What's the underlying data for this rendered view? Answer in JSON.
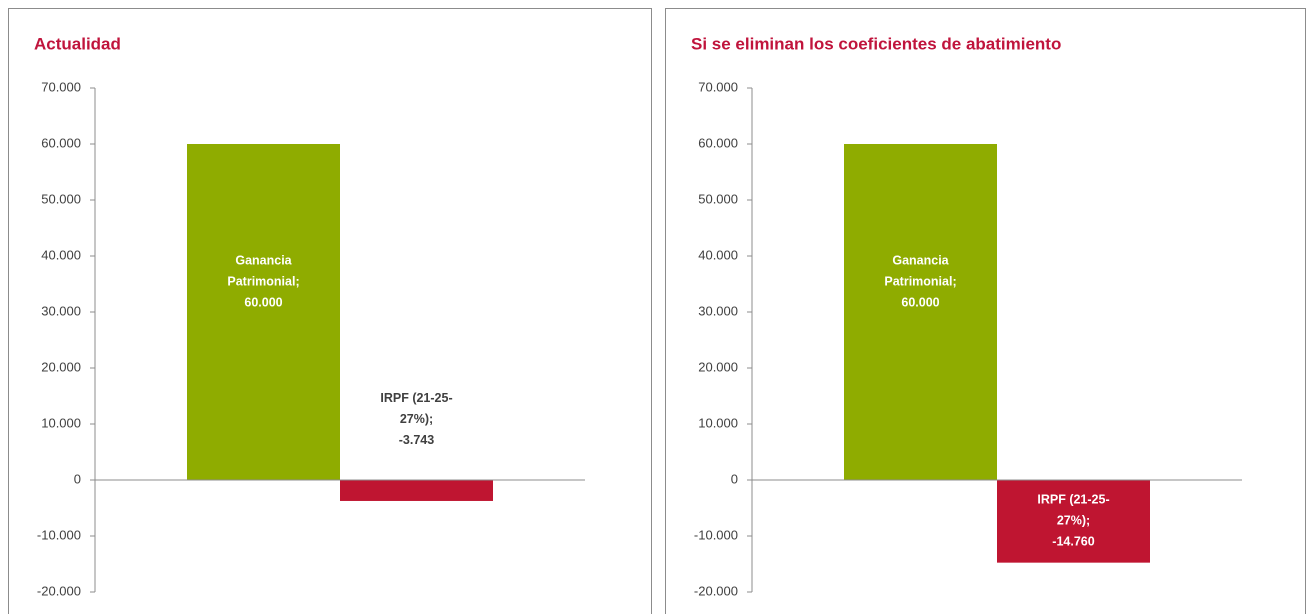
{
  "chart_data": [
    {
      "type": "bar",
      "title": "Actualidad",
      "categories": [
        null
      ],
      "series": [
        {
          "color": "#8fac00",
          "values": [
            60000
          ],
          "value_labels": [
            [
              "Ganancia",
              "Patrimonial;",
              "60.000"
            ]
          ]
        },
        {
          "color": "#bf1531",
          "values": [
            -3743
          ],
          "value_labels": [
            [
              "IRPF (21-25-",
              "27%);",
              "-3.743"
            ]
          ]
        }
      ],
      "ylim": [
        -20000,
        70000
      ],
      "yticks": [
        {
          "value": -20000,
          "label": "-20.000"
        },
        {
          "value": -10000,
          "label": "-10.000"
        },
        0,
        {
          "value": 10000,
          "label": "10.000"
        },
        {
          "value": 20000,
          "label": "20.000"
        },
        {
          "value": 30000,
          "label": "30.000"
        },
        {
          "value": 40000,
          "label": "40.000"
        },
        {
          "value": 50000,
          "label": "50.000"
        },
        {
          "value": 60000,
          "label": "60.000"
        },
        {
          "value": 70000,
          "label": "70.000"
        }
      ],
      "grid": false
    },
    {
      "type": "bar",
      "title": "Si se eliminan los coeficientes de abatimiento",
      "categories": [
        null
      ],
      "series": [
        {
          "color": "#8fac00",
          "values": [
            60000
          ],
          "value_labels": [
            [
              "Ganancia",
              "Patrimonial;",
              "60.000"
            ]
          ]
        },
        {
          "color": "#bf1531",
          "values": [
            -14760
          ],
          "value_labels": [
            [
              "IRPF (21-25-",
              "27%);",
              "-14.760"
            ]
          ]
        }
      ],
      "ylim": [
        -20000,
        70000
      ],
      "yticks": [
        {
          "value": -20000,
          "label": "-20.000"
        },
        {
          "value": -10000,
          "label": "-10.000"
        },
        0,
        {
          "value": 10000,
          "label": "10.000"
        },
        {
          "value": 20000,
          "label": "20.000"
        },
        {
          "value": 30000,
          "label": "30.000"
        },
        {
          "value": 40000,
          "label": "40.000"
        },
        {
          "value": 50000,
          "label": "50.000"
        },
        {
          "value": 60000,
          "label": "60.000"
        },
        {
          "value": 70000,
          "label": "70.000"
        }
      ],
      "grid": false
    }
  ]
}
